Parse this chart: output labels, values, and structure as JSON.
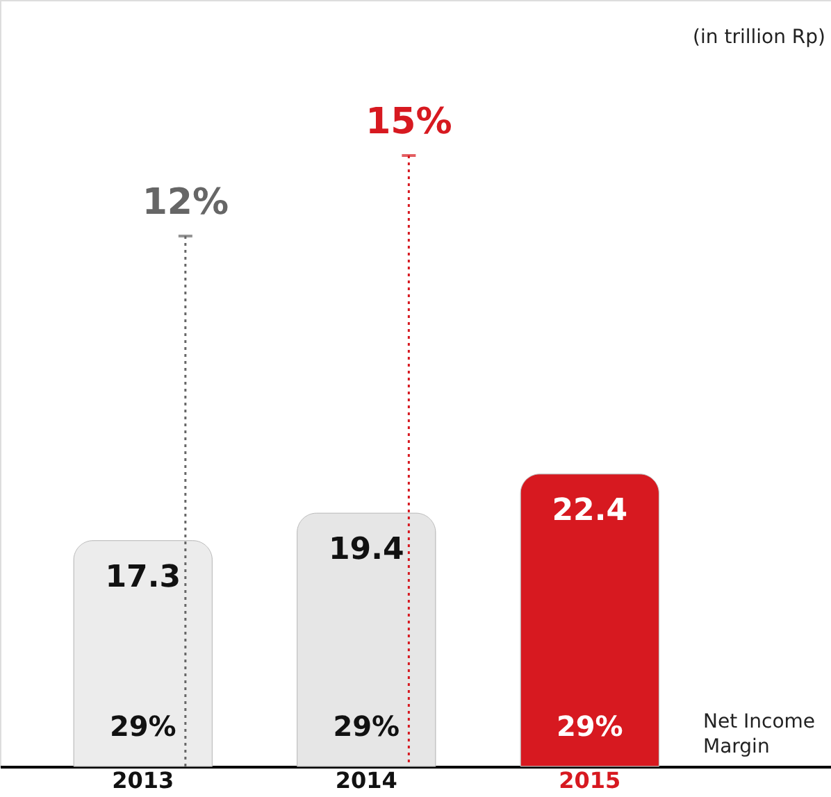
{
  "chart_data": {
    "type": "bar",
    "categories": [
      "2013",
      "2014",
      "2015"
    ],
    "values": [
      17.3,
      19.4,
      22.4
    ],
    "colors": [
      "#ececec",
      "#e6e6e6",
      "#d71920"
    ],
    "ylim": [
      0,
      58.7
    ],
    "data_labels": true,
    "annotations": [
      "(in trillion Rp)",
      "Net Income Margin",
      "29%",
      "29%",
      "29%",
      "12%",
      "15%"
    ]
  }
}
